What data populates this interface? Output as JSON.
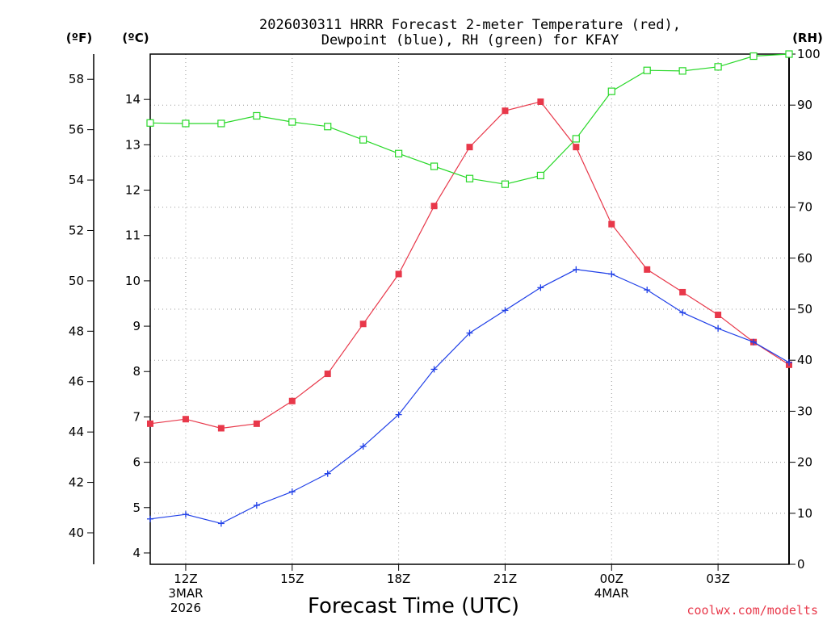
{
  "chart_data": {
    "type": "line",
    "title_lines": [
      "2026030311 HRRR Forecast 2-meter Temperature (red),",
      "Dewpoint (blue), RH (green) for KFAY"
    ],
    "xlabel": "Forecast Time (UTC)",
    "credit": "coolwx.com/modelts",
    "units": {
      "fahrenheit": "(ºF)",
      "celsius": "(ºC)",
      "rh": "(RH)"
    },
    "x_hours": [
      11,
      12,
      13,
      14,
      15,
      16,
      17,
      18,
      19,
      20,
      21,
      22,
      23,
      24,
      25,
      26,
      27,
      28,
      29
    ],
    "x_range": [
      11,
      29
    ],
    "x_ticks": [
      {
        "hour": 12,
        "lines": [
          "12Z",
          "3MAR",
          "2026"
        ]
      },
      {
        "hour": 15,
        "lines": [
          "15Z"
        ]
      },
      {
        "hour": 18,
        "lines": [
          "18Z"
        ]
      },
      {
        "hour": 21,
        "lines": [
          "21Z"
        ]
      },
      {
        "hour": 24,
        "lines": [
          "00Z",
          "4MAR"
        ]
      },
      {
        "hour": 27,
        "lines": [
          "03Z"
        ]
      }
    ],
    "celsius_range": [
      3.75,
      15.0
    ],
    "celsius_ticks": [
      "4",
      "5",
      "6",
      "7",
      "8",
      "9",
      "10",
      "11",
      "12",
      "13",
      "14"
    ],
    "fahrenheit_ticks": [
      "40",
      "42",
      "44",
      "46",
      "48",
      "50",
      "52",
      "54",
      "56",
      "58"
    ],
    "rh_range": [
      0,
      100
    ],
    "rh_ticks": [
      "0",
      "10",
      "20",
      "30",
      "40",
      "50",
      "60",
      "70",
      "80",
      "90",
      "100"
    ],
    "series": [
      {
        "name": "Temperature",
        "color": "#e8384a",
        "marker": "filled-square",
        "axis": "celsius",
        "values": [
          6.85,
          6.95,
          6.75,
          6.85,
          7.35,
          7.95,
          9.05,
          10.15,
          11.65,
          12.95,
          13.75,
          13.95,
          12.95,
          11.25,
          10.25,
          9.75,
          9.25,
          8.65,
          8.15
        ]
      },
      {
        "name": "Dewpoint",
        "color": "#2040e8",
        "marker": "plus",
        "axis": "celsius",
        "values": [
          4.75,
          4.85,
          4.65,
          5.05,
          5.35,
          5.75,
          6.35,
          7.05,
          8.05,
          8.85,
          9.35,
          9.85,
          10.25,
          10.15,
          9.8,
          9.3,
          8.95,
          8.65,
          8.2
        ]
      },
      {
        "name": "RH",
        "color": "#28d828",
        "marker": "open-square",
        "axis": "rh",
        "values": [
          86.5,
          86.4,
          86.4,
          87.9,
          86.7,
          85.8,
          83.2,
          80.5,
          78.0,
          75.6,
          74.5,
          76.2,
          83.4,
          92.7,
          96.8,
          96.7,
          97.5,
          99.6,
          100.0
        ]
      }
    ]
  }
}
